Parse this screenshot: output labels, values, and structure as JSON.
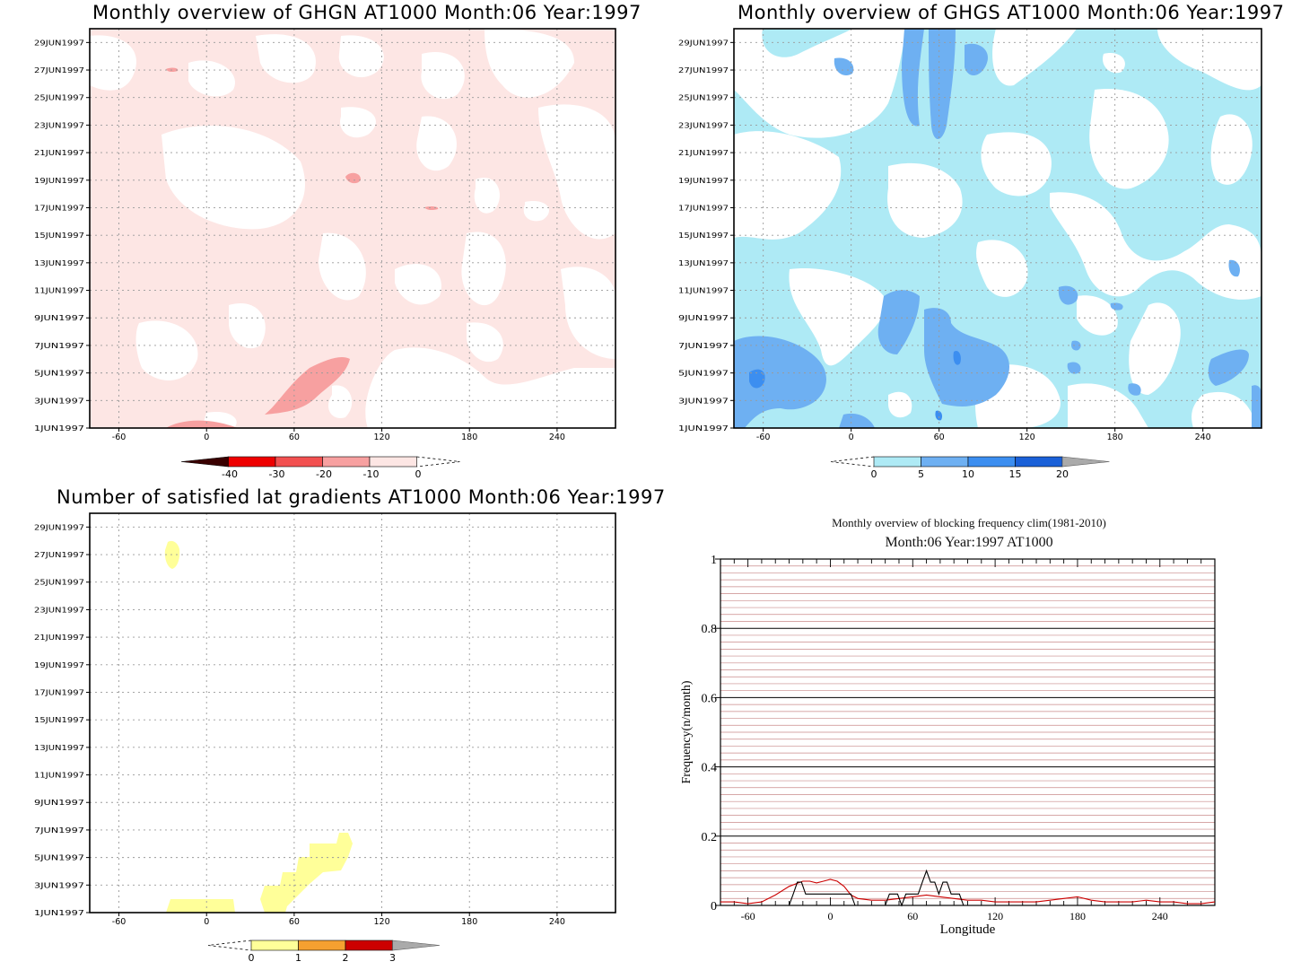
{
  "chart_data": [
    {
      "type": "heatmap",
      "title": "Monthly overview of GHGN AT1000 Month:06 Year:1997",
      "x_ticks": [
        "-60",
        "0",
        "60",
        "120",
        "180",
        "240"
      ],
      "x_tick_values": [
        -60,
        0,
        60,
        120,
        180,
        240
      ],
      "y_ticks": [
        "1JUN1997",
        "3JUN1997",
        "5JUN1997",
        "7JUN1997",
        "9JUN1997",
        "11JUN1997",
        "13JUN1997",
        "15JUN1997",
        "17JUN1997",
        "19JUN1997",
        "21JUN1997",
        "23JUN1997",
        "25JUN1997",
        "27JUN1997",
        "29JUN1997"
      ],
      "xlim": [
        -80,
        280
      ],
      "ylim": [
        1,
        30
      ],
      "grid": true,
      "colorbar": {
        "labels": [
          "-40",
          "-30",
          "-20",
          "-10",
          "0"
        ],
        "colors": [
          "#3a0000",
          "#ee0000",
          "#f25050",
          "#f7a0a0",
          "#fde6e4"
        ]
      },
      "base_color": "#fde6e4"
    },
    {
      "type": "heatmap",
      "title": "Monthly overview of GHGS AT1000 Month:06 Year:1997",
      "x_ticks": [
        "-60",
        "0",
        "60",
        "120",
        "180",
        "240"
      ],
      "x_tick_values": [
        -60,
        0,
        60,
        120,
        180,
        240
      ],
      "y_ticks": [
        "1JUN1997",
        "3JUN1997",
        "5JUN1997",
        "7JUN1997",
        "9JUN1997",
        "11JUN1997",
        "13JUN1997",
        "15JUN1997",
        "17JUN1997",
        "19JUN1997",
        "21JUN1997",
        "23JUN1997",
        "25JUN1997",
        "27JUN1997",
        "29JUN1997"
      ],
      "xlim": [
        -80,
        280
      ],
      "ylim": [
        1,
        30
      ],
      "grid": true,
      "colorbar": {
        "labels": [
          "0",
          "5",
          "10",
          "15",
          "20"
        ],
        "colors": [
          "#aeeaf5",
          "#6eb0f2",
          "#3c8ef0",
          "#1a60d8",
          "#aaaaaa"
        ]
      },
      "base_color": "#aeeaf5"
    },
    {
      "type": "heatmap",
      "title": "Number of satisfied lat gradients AT1000 Month:06 Year:1997",
      "x_ticks": [
        "-60",
        "0",
        "60",
        "120",
        "180",
        "240"
      ],
      "x_tick_values": [
        -60,
        0,
        60,
        120,
        180,
        240
      ],
      "y_ticks": [
        "1JUN1997",
        "3JUN1997",
        "5JUN1997",
        "7JUN1997",
        "9JUN1997",
        "11JUN1997",
        "13JUN1997",
        "15JUN1997",
        "17JUN1997",
        "19JUN1997",
        "21JUN1997",
        "23JUN1997",
        "25JUN1997",
        "27JUN1997",
        "29JUN1997"
      ],
      "xlim": [
        -80,
        280
      ],
      "ylim": [
        1,
        30
      ],
      "grid": true,
      "colorbar": {
        "labels": [
          "0",
          "1",
          "2",
          "3"
        ],
        "colors": [
          "#ffff99",
          "#f5a030",
          "#cc0000",
          "#aaaaaa"
        ]
      },
      "base_color": "#ffff99"
    },
    {
      "type": "line",
      "title": "Monthly overview of blocking frequency clim(1981-2010)",
      "subtitle": "Month:06 Year:1997  AT1000",
      "xlabel": "Longitude",
      "ylabel": "Frequency(n/month)",
      "xlim": [
        -80,
        280
      ],
      "ylim": [
        0,
        1
      ],
      "x_ticks": [
        "-60",
        "0",
        "60",
        "120",
        "180",
        "240"
      ],
      "x_tick_values": [
        -60,
        0,
        60,
        120,
        180,
        240
      ],
      "y_ticks": [
        "0",
        "0.2",
        "0.4",
        "0.6",
        "0.8",
        "1"
      ],
      "y_tick_values": [
        0,
        0.2,
        0.4,
        0.6,
        0.8,
        1
      ],
      "grid": true,
      "series": [
        {
          "color": "#cc0000",
          "x": [
            -80,
            -70,
            -60,
            -50,
            -40,
            -30,
            -20,
            -15,
            -10,
            -5,
            0,
            5,
            10,
            15,
            20,
            30,
            40,
            50,
            60,
            70,
            80,
            90,
            100,
            110,
            120,
            130,
            140,
            150,
            160,
            170,
            180,
            190,
            200,
            210,
            220,
            230,
            240,
            250,
            260,
            270,
            280
          ],
          "y": [
            0.01,
            0.01,
            0.005,
            0.01,
            0.03,
            0.055,
            0.07,
            0.07,
            0.065,
            0.07,
            0.075,
            0.07,
            0.055,
            0.03,
            0.02,
            0.015,
            0.015,
            0.02,
            0.025,
            0.03,
            0.025,
            0.02,
            0.015,
            0.015,
            0.01,
            0.01,
            0.01,
            0.01,
            0.015,
            0.02,
            0.025,
            0.015,
            0.01,
            0.01,
            0.01,
            0.015,
            0.01,
            0.01,
            0.005,
            0.005,
            0.01
          ]
        },
        {
          "color": "#000000",
          "x": [
            -80,
            -30,
            -27,
            -24,
            -21,
            -18,
            -15,
            -12,
            -9,
            -6,
            -3,
            0,
            3,
            6,
            9,
            12,
            15,
            18,
            40,
            43,
            46,
            49,
            52,
            55,
            58,
            61,
            64,
            67,
            70,
            73,
            76,
            79,
            82,
            85,
            88,
            91,
            94,
            97,
            280
          ],
          "y": [
            0,
            0,
            0.033,
            0.067,
            0.067,
            0.033,
            0.033,
            0.033,
            0.033,
            0.033,
            0.033,
            0.033,
            0.033,
            0.033,
            0.033,
            0.033,
            0.033,
            0,
            0,
            0.033,
            0.033,
            0.033,
            0.0,
            0.033,
            0.033,
            0.033,
            0.033,
            0.067,
            0.1,
            0.067,
            0.067,
            0.033,
            0.067,
            0.067,
            0.033,
            0.033,
            0.033,
            0,
            0
          ]
        }
      ]
    }
  ]
}
